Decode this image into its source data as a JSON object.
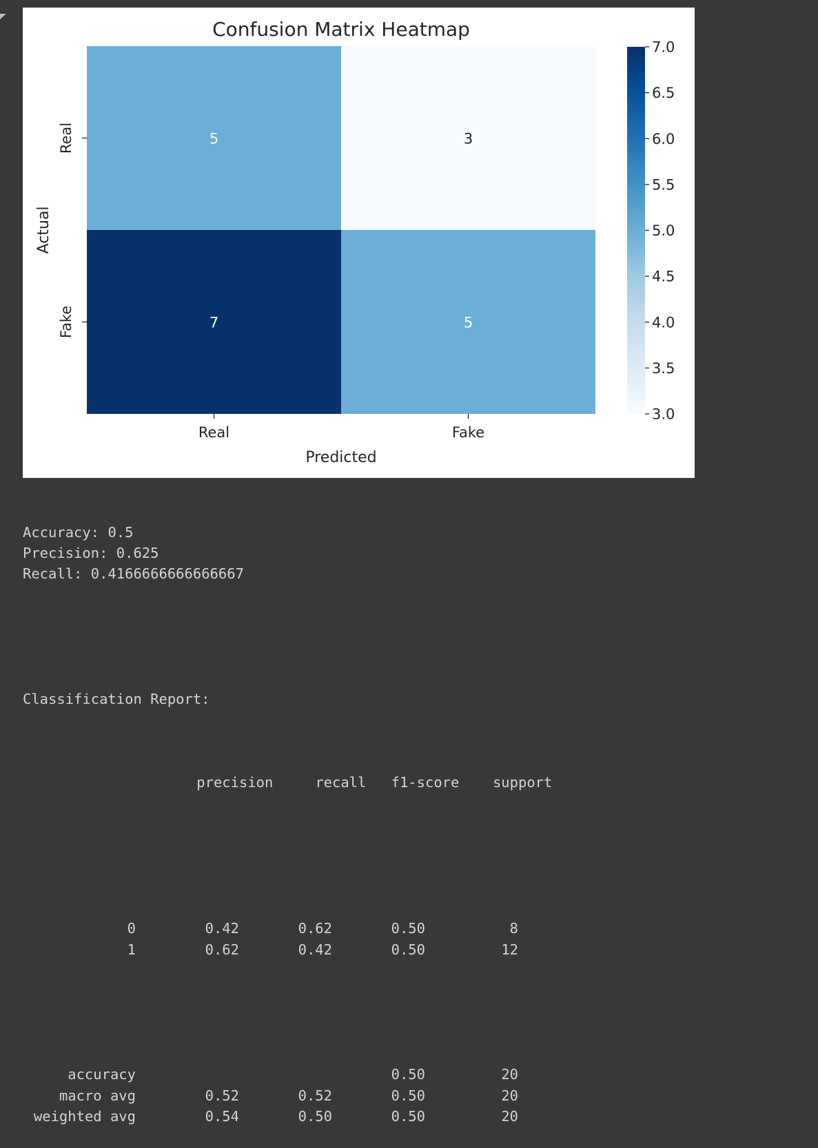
{
  "chart_data": {
    "type": "heatmap",
    "title": "Confusion Matrix Heatmap",
    "xlabel": "Predicted",
    "ylabel": "Actual",
    "x_categories": [
      "Real",
      "Fake"
    ],
    "y_categories": [
      "Real",
      "Fake"
    ],
    "values": [
      [
        5,
        3
      ],
      [
        7,
        5
      ]
    ],
    "colormap": "Blues",
    "colorbar": {
      "min": 3.0,
      "max": 7.0,
      "ticks": [
        "3.0",
        "3.5",
        "4.0",
        "4.5",
        "5.0",
        "5.5",
        "6.0",
        "6.5",
        "7.0"
      ]
    },
    "colors": {
      "low": "#f7fbff",
      "mid": "#6baed6",
      "high": "#08306b",
      "annotation_on_dark": "#ffffff",
      "annotation_on_light": "#262626"
    },
    "grid": false,
    "legend": "colorbar-right"
  },
  "metrics": [
    {
      "label": "Accuracy:",
      "value": "0.5"
    },
    {
      "label": "Precision:",
      "value": "0.625"
    },
    {
      "label": "Recall:",
      "value": "0.4166666666666667"
    }
  ],
  "report": {
    "heading": "Classification Report:",
    "columns": [
      "precision",
      "recall",
      "f1-score",
      "support"
    ],
    "class_rows": [
      {
        "label": "0",
        "precision": "0.42",
        "recall": "0.62",
        "f1": "0.50",
        "support": "8"
      },
      {
        "label": "1",
        "precision": "0.62",
        "recall": "0.42",
        "f1": "0.50",
        "support": "12"
      }
    ],
    "summary_rows": [
      {
        "label": "accuracy",
        "precision": "",
        "recall": "",
        "f1": "0.50",
        "support": "20"
      },
      {
        "label": "macro avg",
        "precision": "0.52",
        "recall": "0.52",
        "f1": "0.50",
        "support": "20"
      },
      {
        "label": "weighted avg",
        "precision": "0.54",
        "recall": "0.50",
        "f1": "0.50",
        "support": "20"
      }
    ]
  }
}
